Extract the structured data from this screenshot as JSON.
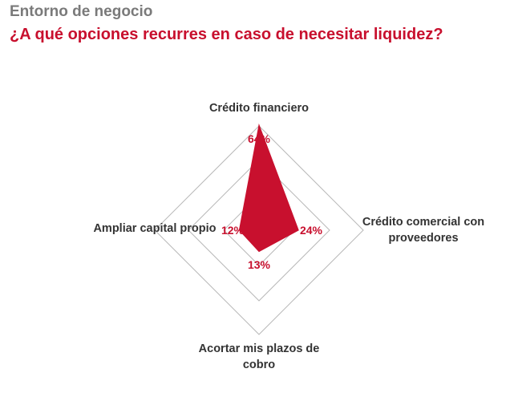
{
  "header": {
    "title": "Entorno de negocio",
    "subtitle": "¿A qué opciones recurres en caso de necesitar liquidez?"
  },
  "colors": {
    "accent": "#c8102e",
    "grid": "#b8b8b8",
    "title": "#7a7a7a",
    "label": "#333333"
  },
  "chart_data": {
    "type": "radar",
    "title": "¿A qué opciones recurres en caso de necesitar liquidez?",
    "axes": [
      {
        "label": [
          "Crédito financiero"
        ],
        "value": 64,
        "value_label": "64%",
        "position": "top"
      },
      {
        "label": [
          "Crédito comercial con",
          "proveedores"
        ],
        "value": 24,
        "value_label": "24%",
        "position": "right"
      },
      {
        "label": [
          "Acortar mis plazos de",
          "cobro"
        ],
        "value": 13,
        "value_label": "13%",
        "position": "bottom"
      },
      {
        "label": [
          "Ampliar capital propio"
        ],
        "value": 12,
        "value_label": "12%",
        "position": "left"
      }
    ],
    "scale_max": 100,
    "grid_levels": 3,
    "grid_shape": "diamond"
  }
}
